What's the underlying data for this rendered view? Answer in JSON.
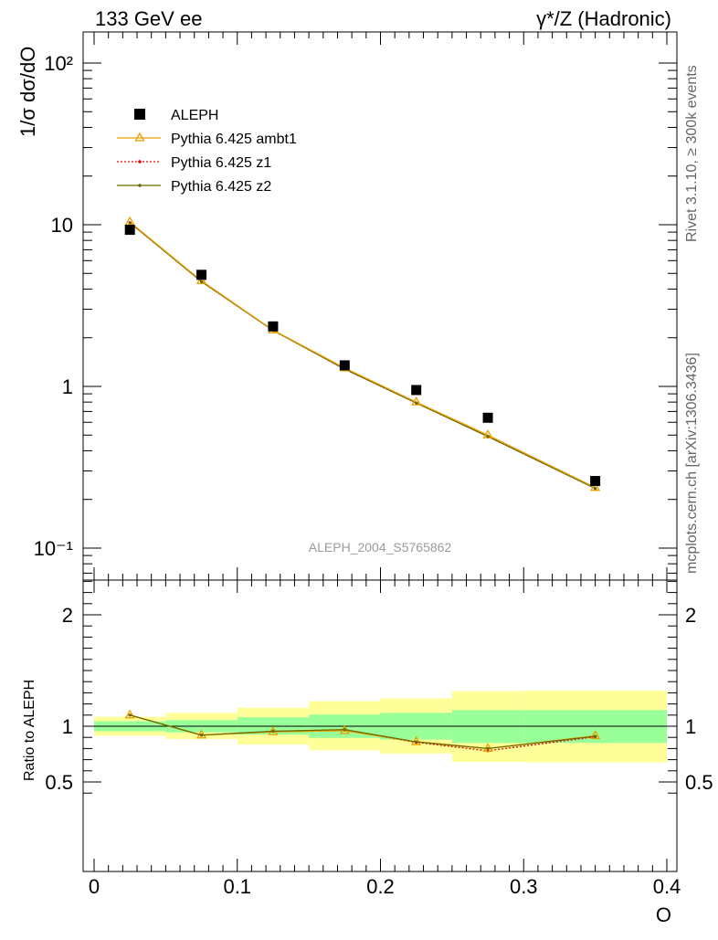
{
  "header": {
    "left": "133 GeV ee",
    "right": "γ*/Z (Hadronic)"
  },
  "side_labels": {
    "rivet": "Rivet 3.1.10, ≥ 300k events",
    "mcplots": "mcplots.cern.ch [arXiv:1306.3436]"
  },
  "watermark": "ALEPH_2004_S5765862",
  "colors": {
    "aleph": "#000000",
    "ambt1": "#e8a000",
    "z1": "#e00000",
    "z2": "#6b6b00",
    "band_inner": "#99ff99",
    "band_outer": "#ffff99"
  },
  "chart_data": [
    {
      "type": "scatter",
      "ylabel": "1/σ  dσ/dO",
      "yscale": "log",
      "xlim": [
        0,
        0.4
      ],
      "ylim": [
        0.07,
        160
      ],
      "y_tick_labels": [
        "10⁻¹",
        "1",
        "10",
        "10²"
      ],
      "legend": [
        "ALEPH",
        "Pythia 6.425 ambt1",
        "Pythia 6.425 z1",
        "Pythia 6.425 z2"
      ],
      "x": [
        0.025,
        0.075,
        0.125,
        0.175,
        0.225,
        0.275,
        0.35
      ],
      "series": [
        {
          "name": "ALEPH",
          "values": [
            9.3,
            4.9,
            2.35,
            1.35,
            0.95,
            0.64,
            0.26
          ]
        },
        {
          "name": "Pythia 6.425 ambt1",
          "values": [
            10.4,
            4.5,
            2.23,
            1.3,
            0.8,
            0.5,
            0.237
          ]
        },
        {
          "name": "Pythia 6.425 z1",
          "values": [
            10.3,
            4.45,
            2.22,
            1.28,
            0.79,
            0.49,
            0.234
          ]
        },
        {
          "name": "Pythia 6.425 z2",
          "values": [
            10.3,
            4.45,
            2.22,
            1.28,
            0.79,
            0.49,
            0.234
          ]
        }
      ]
    },
    {
      "type": "line",
      "ylabel": "Ratio to ALEPH",
      "xlabel": "O",
      "xlim": [
        0,
        0.4
      ],
      "ylim": [
        0.38,
        2.35
      ],
      "y_tick_labels": [
        "0.5",
        "1",
        "2"
      ],
      "x_tick_labels": [
        "0",
        "0.1",
        "0.2",
        "0.3",
        "0.4"
      ],
      "bands": {
        "edges": [
          0,
          0.05,
          0.1,
          0.15,
          0.2,
          0.25,
          0.3,
          0.4
        ],
        "inner_lo": [
          0.955,
          0.945,
          0.925,
          0.895,
          0.88,
          0.85,
          0.85
        ],
        "inner_hi": [
          1.045,
          1.055,
          1.08,
          1.105,
          1.12,
          1.145,
          1.145
        ],
        "outer_lo": [
          0.915,
          0.885,
          0.835,
          0.785,
          0.755,
          0.68,
          0.675
        ],
        "outer_hi": [
          1.085,
          1.12,
          1.165,
          1.225,
          1.25,
          1.315,
          1.32
        ]
      },
      "x": [
        0.025,
        0.075,
        0.125,
        0.175,
        0.225,
        0.275,
        0.35
      ],
      "series": [
        {
          "name": "Pythia 6.425 ambt1",
          "values": [
            1.1,
            0.92,
            0.95,
            0.96,
            0.86,
            0.8,
            0.915
          ]
        },
        {
          "name": "Pythia 6.425 z1",
          "values": [
            1.1,
            0.92,
            0.955,
            0.965,
            0.855,
            0.78,
            0.905
          ]
        },
        {
          "name": "Pythia 6.425 z2",
          "values": [
            1.1,
            0.92,
            0.955,
            0.97,
            0.86,
            0.8,
            0.91
          ]
        }
      ]
    }
  ]
}
